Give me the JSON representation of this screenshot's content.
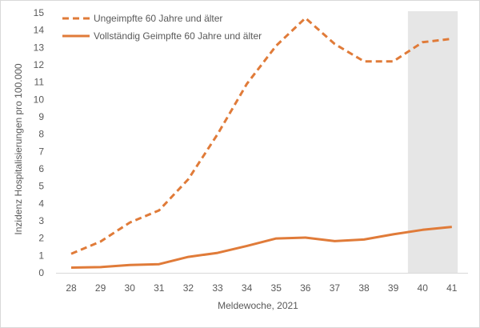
{
  "chart_data": {
    "type": "line",
    "title": "",
    "xlabel": "Meldewoche, 2021",
    "ylabel": "Inzidenz Hospitalisierungen pro 100.000",
    "categories": [
      "28",
      "29",
      "30",
      "31",
      "32",
      "33",
      "34",
      "35",
      "36",
      "37",
      "38",
      "39",
      "40",
      "41"
    ],
    "ylim": [
      0,
      15
    ],
    "yticks": [
      "0",
      "1",
      "2",
      "3",
      "4",
      "5",
      "6",
      "7",
      "8",
      "9",
      "10",
      "11",
      "12",
      "13",
      "14",
      "15"
    ],
    "grid": false,
    "legend": "top-left",
    "highlight_range": [
      "39.5",
      "41"
    ],
    "highlight_color": "#e6e6e6",
    "series": [
      {
        "name": "Ungeimpfte 60 Jahre und älter",
        "style": "dashed",
        "color": "#e07b39",
        "values": [
          1.1,
          1.8,
          2.9,
          3.6,
          5.4,
          8.0,
          10.9,
          13.1,
          14.7,
          13.2,
          12.2,
          12.2,
          13.3,
          13.5
        ]
      },
      {
        "name": "Vollständig Geimpfte 60 Jahre und älter",
        "style": "solid",
        "color": "#e07b39",
        "values": [
          0.3,
          0.33,
          0.45,
          0.5,
          0.92,
          1.15,
          1.55,
          1.98,
          2.03,
          1.83,
          1.92,
          2.22,
          2.48,
          2.65
        ]
      }
    ]
  }
}
